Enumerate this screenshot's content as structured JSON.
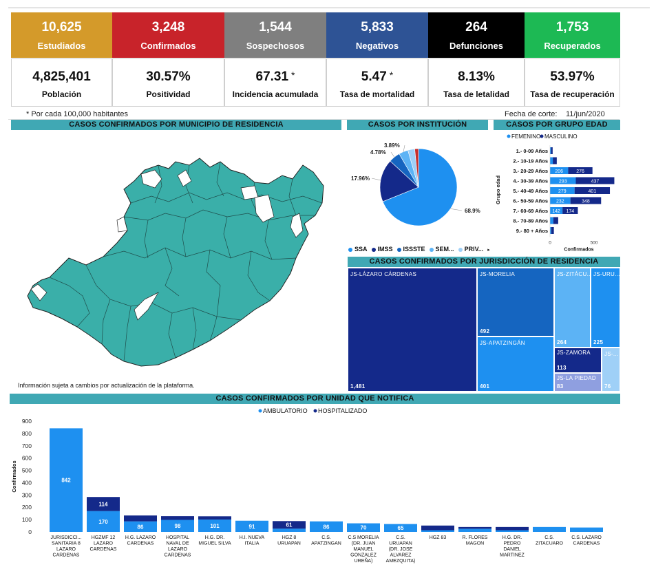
{
  "kpis": [
    {
      "value": "10,625",
      "label": "Estudiados",
      "color": "#d49a2a"
    },
    {
      "value": "3,248",
      "label": "Confirmados",
      "color": "#c8232a"
    },
    {
      "value": "1,544",
      "label": "Sospechosos",
      "color": "#7f7f7f"
    },
    {
      "value": "5,833",
      "label": "Negativos",
      "color": "#2e5395"
    },
    {
      "value": "264",
      "label": "Defunciones",
      "color": "#000000"
    },
    {
      "value": "1,753",
      "label": "Recuperados",
      "color": "#1db954"
    }
  ],
  "stats": [
    {
      "value": "4,825,401",
      "mark": "",
      "label": "Población"
    },
    {
      "value": "30.57%",
      "mark": "",
      "label": "Positividad"
    },
    {
      "value": "67.31",
      "mark": "*",
      "label": "Incidencia acumulada"
    },
    {
      "value": "5.47",
      "mark": "*",
      "label": "Tasa de mortalidad"
    },
    {
      "value": "8.13%",
      "mark": "",
      "label": "Tasa de letalidad"
    },
    {
      "value": "53.97%",
      "mark": "",
      "label": "Tasa de recuperación"
    }
  ],
  "footnote": "* Por cada 100,000 habitantes",
  "cutoff_label": "Fecha de corte:",
  "cutoff_date": "11/jun/2020",
  "map_section": {
    "title": "CASOS CONFIRMADOS POR MUNICIPIO DE RESIDENCIA",
    "note": "Información sujeta a cambios por actualización de la plataforma.",
    "fill": "#3aafa9"
  },
  "institution_section": {
    "title": "CASOS POR INSTITUCIÓN"
  },
  "age_section": {
    "title": "CASOS POR GRUPO EDAD"
  },
  "jurisdiction_section": {
    "title": "CASOS CONFIRMADOS POR JURISDICCIÓN DE RESIDENCIA"
  },
  "unit_section": {
    "title": "CASOS CONFIRMADOS POR UNIDAD QUE NOTIFICA"
  },
  "chart_data": [
    {
      "type": "pie",
      "slices": [
        {
          "label": "SSA",
          "value": 68.9,
          "text": "68.9%",
          "color": "#1e90f0"
        },
        {
          "label": "IMSS",
          "value": 17.96,
          "text": "17.96%",
          "color": "#14298a"
        },
        {
          "label": "ISSSTE",
          "value": 4.78,
          "text": "4.78%",
          "color": "#1565c0"
        },
        {
          "label": "SEM...",
          "value": 3.89,
          "text": "3.89%",
          "color": "#5cb3f5"
        },
        {
          "label": "PRIV...",
          "value": 2.9,
          "text": "",
          "color": "#9fd0f7"
        },
        {
          "label": "",
          "value": 1.57,
          "text": "",
          "color": "#c9302c"
        }
      ],
      "legend": [
        "SSA",
        "IMSS",
        "ISSSTE",
        "SEM...",
        "PRIV..."
      ]
    },
    {
      "type": "bar",
      "orientation": "horizontal",
      "stacked": true,
      "ylabel": "Grupo edad",
      "xlabel": "Confirmados",
      "xticks": [
        "0",
        "500"
      ],
      "xlim": [
        0,
        750
      ],
      "categories": [
        "1.- 0-09 Años",
        "2.- 10-19 Años",
        "3.- 20-29 Años",
        "4.- 30-39 Años",
        "5.- 40-49 Años",
        "6.- 50-59 Años",
        "7.- 60-69 Años",
        "8.- 70-89 Años",
        "9.- 80 + Años"
      ],
      "series": [
        {
          "name": "FEMENINO",
          "color": "#1e90f0",
          "values": [
            12,
            32,
            206,
            293,
            279,
            232,
            142,
            38,
            14
          ],
          "labels": [
            "",
            "",
            "206",
            "293",
            "279",
            "232",
            "142",
            "",
            ""
          ]
        },
        {
          "name": "MASCULINO",
          "color": "#14298a",
          "values": [
            18,
            45,
            276,
            437,
            401,
            348,
            174,
            55,
            30
          ],
          "labels": [
            "",
            "",
            "276",
            "437",
            "401",
            "348",
            "174",
            "",
            ""
          ]
        }
      ]
    },
    {
      "type": "treemap",
      "items": [
        {
          "name": "JS-LÁZARO CÁRDENAS",
          "value": 1481,
          "label": "1,481",
          "color": "#14298a"
        },
        {
          "name": "JS-MORELIA",
          "value": 492,
          "label": "492",
          "color": "#1565c0"
        },
        {
          "name": "JS-APATZINGÁN",
          "value": 401,
          "label": "401",
          "color": "#1e90f0"
        },
        {
          "name": "JS-ZITÁCU...",
          "value": 264,
          "label": "264",
          "color": "#5cb3f5"
        },
        {
          "name": "JS-URU...",
          "value": 225,
          "label": "225",
          "color": "#1e90f0"
        },
        {
          "name": "JS-ZAMORA",
          "value": 113,
          "label": "113",
          "color": "#14298a"
        },
        {
          "name": "JS-LA PIEDAD",
          "value": 83,
          "label": "83",
          "color": "#8f9fe0"
        },
        {
          "name": "JS-...",
          "value": 76,
          "label": "76",
          "color": "#9fd0f7"
        }
      ]
    },
    {
      "type": "bar",
      "stacked": true,
      "ylabel": "Confirmados",
      "ylim": [
        0,
        900
      ],
      "yticks": [
        "0",
        "100",
        "200",
        "300",
        "400",
        "500",
        "600",
        "700",
        "800",
        "900"
      ],
      "categories": [
        [
          "JURISDICCI...",
          "SANITARIA 8",
          "LAZARO",
          "CARDENAS"
        ],
        [
          "HGZMF 12",
          "LAZARO",
          "CARDENAS"
        ],
        [
          "H.G. LAZARO",
          "CARDENAS"
        ],
        [
          "HOSPITAL",
          "NAVAL DE",
          "LAZARO",
          "CARDENAS"
        ],
        [
          "H.G. DR.",
          "MIGUEL SILVA"
        ],
        [
          "H.I. NUEVA",
          "ITALIA"
        ],
        [
          "HGZ 8",
          "URUAPAN"
        ],
        [
          "C.S.",
          "APATZINGAN"
        ],
        [
          "C.S MORELIA",
          "(DR. JUAN",
          "MANUEL",
          "GONZALEZ",
          "UREÑA)"
        ],
        [
          "C.S.",
          "URUAPAN",
          "(DR. JOSE",
          "ALVAREZ",
          "AMEZQUITA)"
        ],
        [
          "HGZ 83"
        ],
        [
          "R. FLORES",
          "MAGON"
        ],
        [
          "H.G. DR.",
          "PEDRO",
          "DANIEL",
          "MARTINEZ"
        ],
        [
          "C.S.",
          "ZITACUARO"
        ],
        [
          "C.S. LAZARO",
          "CARDENAS"
        ]
      ],
      "series": [
        {
          "name": "AMBULATORIO",
          "color": "#1e90f0",
          "values": [
            842,
            170,
            86,
            98,
            101,
            91,
            27,
            86,
            70,
            65,
            14,
            26,
            14,
            40,
            36
          ],
          "labels": [
            "842",
            "170",
            "86",
            "98",
            "101",
            "91",
            "",
            "86",
            "70",
            "65",
            "",
            "",
            "",
            "",
            ""
          ]
        },
        {
          "name": "HOSPITALIZADO",
          "color": "#14298a",
          "values": [
            0,
            114,
            48,
            30,
            26,
            0,
            61,
            0,
            0,
            0,
            38,
            14,
            26,
            0,
            0
          ],
          "labels": [
            "",
            "114",
            "",
            "",
            "",
            "",
            "61",
            "",
            "",
            "",
            "",
            "",
            "",
            "",
            ""
          ]
        }
      ]
    }
  ]
}
